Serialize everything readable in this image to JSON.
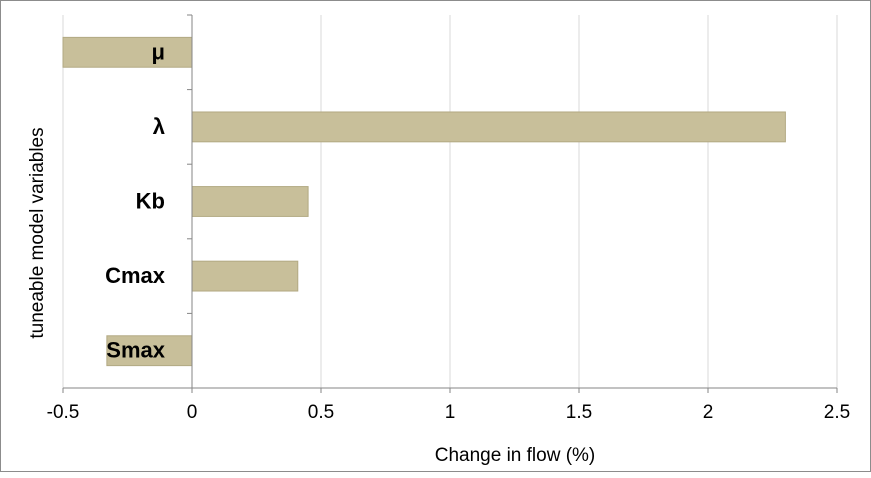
{
  "chart_data": {
    "type": "bar",
    "orientation": "horizontal",
    "categories": [
      "μ",
      "λ",
      "Kb",
      "Cmax",
      "Smax"
    ],
    "values": [
      -0.5,
      2.3,
      0.45,
      0.41,
      -0.33
    ],
    "xlabel": "Change in flow (%)",
    "ylabel": "tuneable model variables",
    "xlim": [
      -0.5,
      2.5
    ],
    "xticks": [
      "-0.5",
      "0",
      "0.5",
      "1",
      "1.5",
      "2",
      "2.5"
    ],
    "grid": "vertical",
    "legend": "none",
    "colors": {
      "bar_fill": "#c8bf9a",
      "bar_stroke": "#b2a983",
      "grid": "#d9d9d9",
      "axis": "#868686",
      "text": "#000000"
    }
  }
}
